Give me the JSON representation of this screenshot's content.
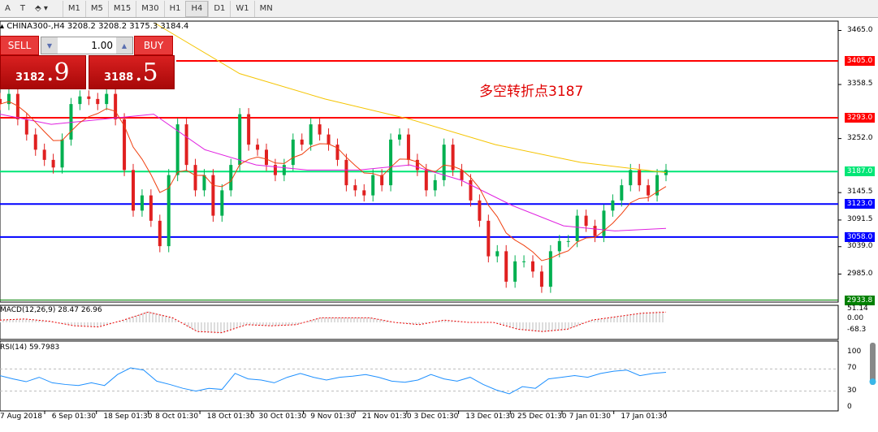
{
  "toolbar": {
    "items": [
      "A",
      "T",
      "shapes"
    ],
    "timeframes": [
      "M1",
      "M5",
      "M15",
      "M30",
      "H1",
      "H4",
      "D1",
      "W1",
      "MN"
    ],
    "active": "H4"
  },
  "header": {
    "symbol_info": "CHINA300-,H4  3208.2 3208.2 3175.3 3184.4"
  },
  "trade": {
    "sell_label": "SELL",
    "buy_label": "BUY",
    "lot": "1.00",
    "sell_small": "3182",
    "sell_big": ".9",
    "buy_small": "3188",
    "buy_big": ".5"
  },
  "annotation": "多空转折点3187",
  "colors": {
    "resistance": "#ff0000",
    "support": "#0000ff",
    "current": "#00e676",
    "ma_slow": "#f5c400",
    "ma_mid": "#e020e0",
    "ma_fast": "#f04010",
    "bull": "#00b050",
    "bear": "#e02020",
    "rsi": "#1e90ff"
  },
  "price_axis": {
    "ticks": [
      "3465.0",
      "3358.5",
      "3252.0",
      "3145.5",
      "3091.5",
      "3039.0",
      "2985.0"
    ],
    "values": [
      3465,
      3358.5,
      3252,
      3145.5,
      3091.5,
      3039,
      2985
    ]
  },
  "levels": [
    {
      "label": "3405.0",
      "value": 3405,
      "color": "#ff0000"
    },
    {
      "label": "3293.0",
      "value": 3293,
      "color": "#ff0000"
    },
    {
      "label": "3187.0",
      "value": 3187,
      "color": "#00e676"
    },
    {
      "label": "3123.0",
      "value": 3123,
      "color": "#0000ff"
    },
    {
      "label": "3058.0",
      "value": 3058,
      "color": "#0000ff"
    },
    {
      "label": "2933.8",
      "value": 2933.8,
      "color": "#008000"
    }
  ],
  "chart_data": {
    "type": "candlestick",
    "closes": [
      3320,
      3340,
      3290,
      3260,
      3230,
      3210,
      3195,
      3250,
      3320,
      3335,
      3330,
      3320,
      3340,
      3290,
      3190,
      3110,
      3140,
      3090,
      3040,
      3180,
      3280,
      3200,
      3150,
      3180,
      3100,
      3150,
      3200,
      3300,
      3240,
      3230,
      3200,
      3180,
      3200,
      3250,
      3240,
      3280,
      3260,
      3240,
      3210,
      3160,
      3150,
      3140,
      3180,
      3160,
      3250,
      3260,
      3210,
      3190,
      3150,
      3170,
      3240,
      3190,
      3170,
      3130,
      3090,
      3020,
      3030,
      2970,
      3010,
      3010,
      2990,
      2960,
      3030,
      3050,
      3050,
      3100,
      3080,
      3060,
      3110,
      3130,
      3160,
      3190,
      3160,
      3140,
      3180,
      3190
    ],
    "ma_slow": [
      3480,
      3380,
      3330,
      3290,
      3240,
      3205,
      3185
    ],
    "ma_mid": [
      3300,
      3280,
      3290,
      3300,
      3230,
      3200,
      3190,
      3190,
      3200,
      3170,
      3120,
      3080,
      3070,
      3075
    ],
    "time_labels": [
      "7 Aug 2018",
      "6 Sep 01:30",
      "18 Sep 01:30",
      "8 Oct 01:30",
      "18 Oct 01:30",
      "30 Oct 01:30",
      "9 Nov 01:30",
      "21 Nov 01:30",
      "3 Dec 01:30",
      "13 Dec 01:30",
      "25 Dec 01:30",
      "7 Jan 01:30",
      "17 Jan 01:30"
    ]
  },
  "macd": {
    "label": "MACD(12,26,9) 28.47 26.96",
    "ticks": [
      "51.14",
      "0.00",
      "-68.3"
    ],
    "signal": [
      10,
      15,
      5,
      -15,
      -20,
      10,
      45,
      20,
      -40,
      -45,
      -10,
      -15,
      -10,
      20,
      20,
      20,
      0,
      -10,
      10,
      0,
      0,
      -30,
      -40,
      -30,
      10,
      25,
      40,
      45
    ]
  },
  "rsi": {
    "label": "RSI(14) 59.7983",
    "ticks": [
      "100",
      "70",
      "30",
      "0"
    ],
    "values": [
      58,
      52,
      47,
      55,
      45,
      42,
      40,
      45,
      40,
      60,
      72,
      68,
      48,
      42,
      35,
      30,
      35,
      33,
      62,
      52,
      50,
      45,
      55,
      62,
      55,
      50,
      55,
      57,
      60,
      55,
      48,
      46,
      50,
      60,
      52,
      48,
      55,
      42,
      32,
      25,
      38,
      35,
      52,
      55,
      58,
      55,
      62,
      66,
      68,
      58,
      62,
      64
    ]
  }
}
